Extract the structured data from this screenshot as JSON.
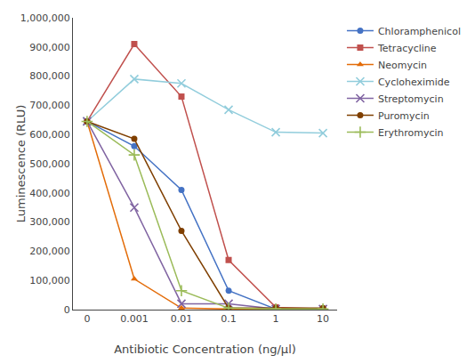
{
  "chart_data": {
    "type": "line",
    "categories": [
      "0",
      "0.001",
      "0.01",
      "0.1",
      "1",
      "10"
    ],
    "series": [
      {
        "name": "Chloramphenicol",
        "color": "#4472C4",
        "marker": "circle",
        "values": [
          645000,
          560000,
          410000,
          65000,
          2000,
          2000
        ]
      },
      {
        "name": "Tetracycline",
        "color": "#C0504D",
        "marker": "square",
        "values": [
          645000,
          910000,
          730000,
          170000,
          8000,
          2000
        ]
      },
      {
        "name": "Neomycin",
        "color": "#E36C09",
        "marker": "triangle",
        "values": [
          645000,
          105000,
          5000,
          2000,
          2000,
          2000
        ]
      },
      {
        "name": "Cycloheximide",
        "color": "#92CDDC",
        "marker": "x",
        "values": [
          645000,
          790000,
          775000,
          685000,
          608000,
          605000
        ]
      },
      {
        "name": "Streptomycin",
        "color": "#8064A2",
        "marker": "x",
        "values": [
          645000,
          350000,
          20000,
          20000,
          2000,
          2000
        ]
      },
      {
        "name": "Puromycin",
        "color": "#7F3F00",
        "marker": "circle",
        "values": [
          645000,
          585000,
          270000,
          5000,
          5000,
          5000
        ]
      },
      {
        "name": "Erythromycin",
        "color": "#9BBB59",
        "marker": "plus",
        "values": [
          645000,
          530000,
          65000,
          5000,
          2000,
          2000
        ]
      }
    ],
    "xlabel": "Antibiotic Concentration (ng/μl)",
    "ylabel": "Luminescence (RLU)",
    "ylim": [
      0,
      1000000
    ],
    "yticks": [
      0,
      {
        "value": 100000,
        "label": "100,000"
      },
      {
        "value": 200000,
        "label": "200,000"
      },
      {
        "value": 300000,
        "label": "300,000"
      },
      {
        "value": 400000,
        "label": "400,000"
      },
      {
        "value": 500000,
        "label": "500,000"
      },
      {
        "value": 600000,
        "label": "600,000"
      },
      {
        "value": 700000,
        "label": "700,000"
      },
      {
        "value": 800000,
        "label": "800,000"
      },
      {
        "value": 900000,
        "label": "900,000"
      },
      {
        "value": 1000000,
        "label": "1,000,000"
      }
    ],
    "grid": false,
    "legend": "upper right"
  }
}
